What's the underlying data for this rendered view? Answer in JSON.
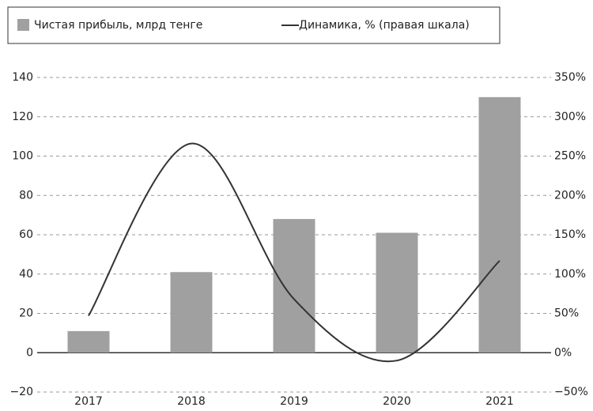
{
  "chart_data": {
    "type": "bar_line",
    "categories": [
      "2017",
      "2018",
      "2019",
      "2020",
      "2021"
    ],
    "series": [
      {
        "name": "Чистая прибыль, млрд тенге",
        "color": "#a0a0a0",
        "values": [
          11,
          41,
          68,
          61,
          130
        ]
      },
      {
        "name": "Динамика, % (правая шкала)",
        "color": "#333333",
        "axis": "y2",
        "values": [
          47,
          266,
          68,
          -10,
          117
        ]
      }
    ],
    "ylim": [
      -20,
      140
    ],
    "yticks": [
      {
        "value": -20,
        "label": "−20"
      },
      0,
      20,
      40,
      60,
      80,
      100,
      120,
      140
    ],
    "y2lim": [
      -50,
      350
    ],
    "y2ticks": [
      {
        "value": -50,
        "label": "−50%"
      },
      {
        "value": 0,
        "label": "0%"
      },
      {
        "value": 50,
        "label": "50%"
      },
      {
        "value": 100,
        "label": "100%"
      },
      {
        "value": 150,
        "label": "150%"
      },
      {
        "value": 200,
        "label": "200%"
      },
      {
        "value": 250,
        "label": "250%"
      },
      {
        "value": 300,
        "label": "300%"
      },
      {
        "value": 350,
        "label": "350%"
      }
    ],
    "grid": true,
    "legend": "top"
  }
}
